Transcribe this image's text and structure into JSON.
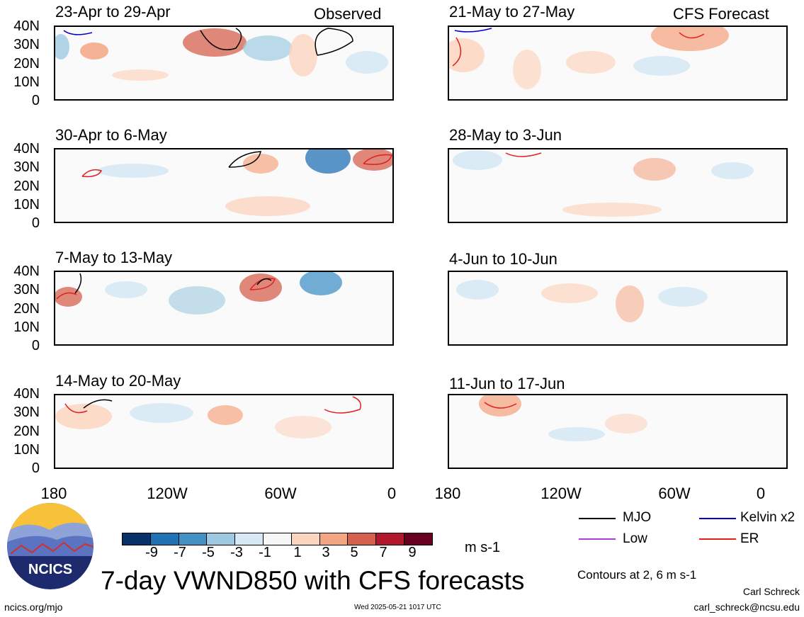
{
  "panels": {
    "observed": [
      {
        "title": "23-Apr to 29-Apr",
        "tag": "Observed"
      },
      {
        "title": "30-Apr to 6-May"
      },
      {
        "title": "7-May to 13-May"
      },
      {
        "title": "14-May to 20-May"
      }
    ],
    "forecast": [
      {
        "title": "21-May to 27-May",
        "tag": "CFS Forecast"
      },
      {
        "title": "28-May to 3-Jun"
      },
      {
        "title": "4-Jun to 10-Jun"
      },
      {
        "title": "11-Jun to 17-Jun"
      }
    ]
  },
  "y_ticks": [
    "40N",
    "30N",
    "20N",
    "10N",
    "0"
  ],
  "x_ticks": [
    "180",
    "120W",
    "60W",
    "0"
  ],
  "colorbar": {
    "labels": [
      "-9",
      "-7",
      "-5",
      "-3",
      "-1",
      "1",
      "3",
      "5",
      "7",
      "9"
    ],
    "colors": [
      "#08306b",
      "#2171b5",
      "#4292c6",
      "#9ecae1",
      "#d6e9f5",
      "#f7f7f7",
      "#fcd5c0",
      "#f4a582",
      "#d6604d",
      "#b2182b",
      "#67001f"
    ],
    "units": "m s-1"
  },
  "legend": [
    {
      "label": "MJO",
      "color": "#000000",
      "icon": "black-line"
    },
    {
      "label": "Kelvin x2",
      "color": "#0000cc",
      "icon": "blue-line"
    },
    {
      "label": "Low",
      "color": "#a040e0",
      "icon": "purple-line"
    },
    {
      "label": "ER",
      "color": "#e02020",
      "icon": "red-line"
    }
  ],
  "contours_note": "Contours at 2, 6 m s-1",
  "main_title": "7-day VWND850 with CFS forecasts",
  "logo_text": "NCICS",
  "site": "ncics.org/mjo",
  "timestamp": "Wed 2025-05-21 1017 UTC",
  "author": "Carl Schreck",
  "email": "carl_schreck@ncsu.edu"
}
